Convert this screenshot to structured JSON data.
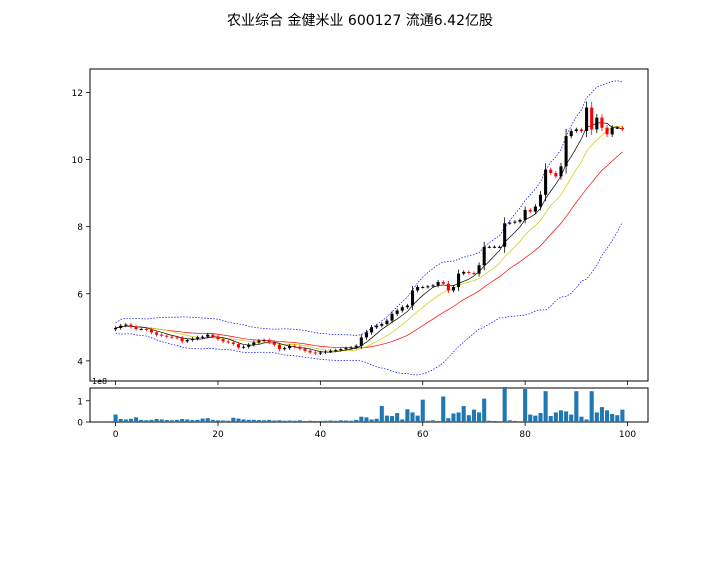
{
  "chart_data": {
    "title": "农业综合 金健米业 600127 流通6.42亿股",
    "price_panel": {
      "type": "candlestick",
      "xlim": [
        -5,
        104
      ],
      "ylim": [
        3.4,
        12.7
      ],
      "yticks": [
        4,
        6,
        8,
        10,
        12
      ],
      "up_color": "#000000",
      "down_color": "#ff0000",
      "grid": false,
      "overlays": [
        {
          "type": "bollinger_upper",
          "color": "#0000ff",
          "style": "dotted"
        },
        {
          "type": "bollinger_lower",
          "color": "#0000ff",
          "style": "dotted"
        },
        {
          "type": "ma_short",
          "color": "#000000"
        },
        {
          "type": "ma_mid",
          "color": "#cccc00"
        },
        {
          "type": "ma_long",
          "color": "#ff0000"
        }
      ],
      "close": [
        4.98,
        5.05,
        5.08,
        5.02,
        4.95,
        4.95,
        4.93,
        4.85,
        4.78,
        4.75,
        4.72,
        4.7,
        4.68,
        4.58,
        4.62,
        4.66,
        4.7,
        4.72,
        4.78,
        4.72,
        4.65,
        4.58,
        4.55,
        4.5,
        4.4,
        4.42,
        4.48,
        4.55,
        4.6,
        4.62,
        4.55,
        4.48,
        4.35,
        4.38,
        4.45,
        4.42,
        4.36,
        4.3,
        4.25,
        4.22,
        4.25,
        4.28,
        4.3,
        4.32,
        4.35,
        4.38,
        4.4,
        4.45,
        4.7,
        4.85,
        5.0,
        5.05,
        5.1,
        5.2,
        5.4,
        5.5,
        5.6,
        5.65,
        6.1,
        6.2,
        6.2,
        6.22,
        6.25,
        6.35,
        6.3,
        6.1,
        6.2,
        6.6,
        6.65,
        6.62,
        6.6,
        6.85,
        7.4,
        7.4,
        7.4,
        7.4,
        8.1,
        8.12,
        8.15,
        8.2,
        8.5,
        8.45,
        8.6,
        8.95,
        9.7,
        9.6,
        9.5,
        9.8,
        10.7,
        10.85,
        10.9,
        10.85,
        11.55,
        10.9,
        11.25,
        10.95,
        10.75,
        10.95,
        10.95,
        10.9
      ]
    },
    "volume_panel": {
      "type": "bar",
      "color": "#1f77b4",
      "ylim": [
        0,
        1.6
      ],
      "yticks": [
        0,
        1
      ],
      "scale_label": "1e8",
      "values": [
        0.35,
        0.14,
        0.12,
        0.15,
        0.22,
        0.1,
        0.08,
        0.1,
        0.14,
        0.12,
        0.09,
        0.08,
        0.1,
        0.14,
        0.12,
        0.09,
        0.1,
        0.16,
        0.18,
        0.1,
        0.08,
        0.07,
        0.06,
        0.2,
        0.16,
        0.12,
        0.1,
        0.1,
        0.09,
        0.08,
        0.1,
        0.07,
        0.08,
        0.06,
        0.07,
        0.06,
        0.08,
        0.05,
        0.06,
        0.05,
        0.05,
        0.06,
        0.07,
        0.06,
        0.08,
        0.07,
        0.06,
        0.1,
        0.25,
        0.22,
        0.12,
        0.15,
        0.75,
        0.3,
        0.28,
        0.42,
        0.12,
        0.6,
        0.45,
        0.3,
        1.05,
        0.06,
        0.08,
        0.05,
        1.2,
        0.18,
        0.4,
        0.45,
        0.75,
        0.32,
        0.58,
        0.45,
        1.1,
        0.06,
        0.05,
        0.04,
        1.65,
        0.08,
        0.05,
        0.04,
        1.55,
        0.35,
        0.3,
        0.42,
        1.45,
        0.28,
        0.45,
        0.55,
        0.5,
        0.35,
        1.45,
        0.25,
        0.12,
        1.45,
        0.45,
        0.7,
        0.55,
        0.38,
        0.32,
        0.58
      ],
      "x_ticks": [
        0,
        20,
        40,
        60,
        80,
        100
      ]
    }
  }
}
